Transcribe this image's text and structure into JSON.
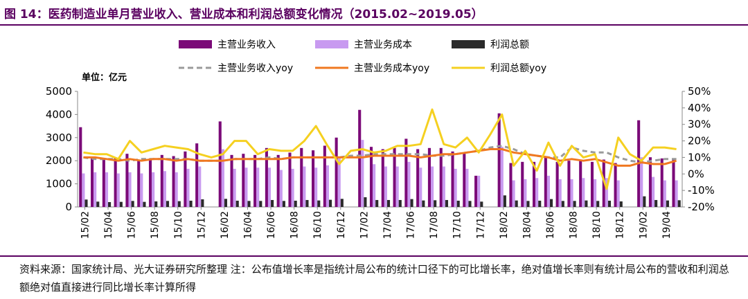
{
  "header": {
    "title": "图 14：医药制造业单月营业收入、营业成本和利润总额变化情况（2015.02~2019.05）"
  },
  "footer": {
    "note": "资料来源：国家统计局、光大证券研究所整理 注：公布值增长率是指统计局公布的统计口径下的可比增长率，绝对值增长率则有统计局公布的营收和利润总额绝对值直接进行同比增长率计算所得"
  },
  "colors": {
    "revenue": "#7b0a78",
    "cost": "#c89af0",
    "profit": "#2b2b2b",
    "revenue_yoy": "#9a9a9a",
    "cost_yoy": "#f07820",
    "profit_yoy": "#f5d020",
    "accent": "#5a0060"
  },
  "chart_data": {
    "type": "bar",
    "unit_label": "单位：亿元",
    "categories": [
      "15/02",
      "15/03",
      "15/04",
      "15/05",
      "15/06",
      "15/07",
      "15/08",
      "15/09",
      "15/10",
      "15/11",
      "15/12",
      "16/01",
      "16/02",
      "16/03",
      "16/04",
      "16/05",
      "16/06",
      "16/07",
      "16/08",
      "16/09",
      "16/10",
      "16/11",
      "16/12",
      "17/01",
      "17/02",
      "17/03",
      "17/04",
      "17/05",
      "17/06",
      "17/07",
      "17/08",
      "17/09",
      "17/10",
      "17/11",
      "17/12",
      "18/01",
      "18/02",
      "18/03",
      "18/04",
      "18/05",
      "18/06",
      "18/07",
      "18/08",
      "18/09",
      "18/10",
      "18/11",
      "18/12",
      "19/01",
      "19/02",
      "19/03",
      "19/04",
      "19/05"
    ],
    "x_tick_labels": [
      "15/02",
      "15/04",
      "15/06",
      "15/08",
      "15/10",
      "15/12",
      "16/02",
      "16/04",
      "16/06",
      "16/08",
      "16/10",
      "16/12",
      "17/02",
      "17/04",
      "17/06",
      "17/08",
      "17/10",
      "17/12",
      "18/02",
      "18/04",
      "18/06",
      "18/08",
      "18/10",
      "18/12",
      "19/02",
      "19/04"
    ],
    "y_left": {
      "lim": [
        0,
        5000
      ],
      "ticks": [
        "0",
        "1000",
        "2000",
        "3000",
        "4000",
        "5000"
      ]
    },
    "y_right": {
      "lim": [
        -20,
        50
      ],
      "ticks": [
        "-20%",
        "-10%",
        "0%",
        "10%",
        "20%",
        "30%",
        "40%",
        "50%"
      ]
    },
    "grid": false,
    "legend_position": "top",
    "bar_series": [
      {
        "name": "主营业务收入",
        "values": [
          3450,
          2100,
          2050,
          2100,
          2300,
          2050,
          2100,
          2250,
          2200,
          2400,
          2750,
          0,
          3700,
          2250,
          2300,
          2250,
          2550,
          2250,
          2350,
          2550,
          2450,
          2650,
          3000,
          0,
          4200,
          2600,
          2500,
          2550,
          2950,
          2500,
          2550,
          2550,
          2400,
          2350,
          1350,
          0,
          4050,
          1900,
          1950,
          1950,
          2200,
          1950,
          2000,
          2050,
          1950,
          2050,
          1900,
          0,
          3750,
          2150,
          2100,
          2100
        ]
      },
      {
        "name": "主营业务成本",
        "values": [
          1450,
          1500,
          1500,
          1450,
          1500,
          1450,
          1500,
          1550,
          1500,
          1650,
          1750,
          0,
          2500,
          1650,
          1700,
          1700,
          1700,
          1600,
          1650,
          1750,
          1700,
          1800,
          2100,
          0,
          2900,
          1850,
          1750,
          1750,
          1950,
          1700,
          1750,
          1750,
          1650,
          1650,
          1350,
          0,
          2600,
          1150,
          1200,
          1250,
          1350,
          1200,
          1200,
          1250,
          1200,
          1250,
          1150,
          0,
          2150,
          1300,
          1150,
          1150
        ]
      },
      {
        "name": "利润总额",
        "values": [
          320,
          230,
          210,
          220,
          260,
          220,
          240,
          260,
          250,
          270,
          330,
          0,
          350,
          270,
          260,
          260,
          300,
          260,
          270,
          300,
          280,
          310,
          350,
          0,
          420,
          300,
          300,
          300,
          340,
          280,
          290,
          300,
          270,
          260,
          230,
          0,
          500,
          280,
          260,
          270,
          340,
          260,
          260,
          280,
          260,
          270,
          240,
          0,
          460,
          300,
          280,
          290
        ]
      }
    ],
    "line_series": [
      {
        "name": "主营业务收入yoy",
        "style": "dashed",
        "values": [
          10,
          9,
          9,
          9,
          8,
          9,
          9,
          9,
          9,
          9,
          8,
          8,
          8,
          9,
          9,
          9,
          10,
          9,
          10,
          10,
          10,
          10,
          10,
          11,
          11,
          12,
          12,
          12,
          12,
          12,
          11,
          11,
          12,
          13,
          14,
          16,
          17,
          15,
          12,
          11,
          10,
          10,
          16,
          14,
          13,
          13,
          10,
          8,
          7,
          8,
          9,
          9
        ]
      },
      {
        "name": "主营业务成本yoy",
        "style": "solid",
        "values": [
          10,
          10,
          9,
          8,
          9,
          8,
          9,
          9,
          8,
          9,
          8,
          8,
          8,
          9,
          9,
          9,
          9,
          9,
          10,
          10,
          10,
          10,
          10,
          10,
          10,
          11,
          11,
          11,
          11,
          10,
          11,
          12,
          12,
          13,
          14,
          15,
          15,
          13,
          12,
          11,
          10,
          8,
          9,
          8,
          9,
          7,
          5,
          5,
          7,
          6,
          6,
          8
        ]
      },
      {
        "name": "利润总额yoy",
        "style": "solid",
        "values": [
          13,
          12,
          12,
          9,
          20,
          13,
          15,
          17,
          16,
          15,
          12,
          10,
          12,
          20,
          20,
          12,
          15,
          14,
          14,
          20,
          29,
          17,
          6,
          14,
          15,
          13,
          14,
          17,
          17,
          18,
          39,
          18,
          16,
          22,
          13,
          24,
          36,
          5,
          14,
          2,
          19,
          5,
          17,
          10,
          12,
          -9,
          22,
          12,
          8,
          16,
          16,
          15
        ]
      }
    ]
  }
}
